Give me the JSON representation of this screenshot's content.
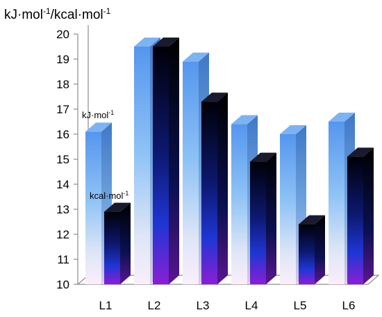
{
  "chart_data": {
    "type": "bar",
    "ylabel_parts": {
      "kj": "kJ·mol",
      "sup1": "-1",
      "sep": "/kcal·mol",
      "sup2": "-1"
    },
    "categories": [
      "L1",
      "L2",
      "L3",
      "L4",
      "L5",
      "L6"
    ],
    "ylim": [
      10,
      20
    ],
    "yticks": [
      10,
      11,
      12,
      13,
      14,
      15,
      16,
      17,
      18,
      19,
      20
    ],
    "grid": false,
    "series": [
      {
        "values": [
          16.1,
          19.5,
          18.9,
          16.4,
          16.0,
          16.5
        ]
      },
      {
        "values": [
          12.9,
          19.5,
          17.3,
          14.9,
          12.4,
          15.1
        ]
      }
    ],
    "annotations": [
      {
        "text": "kJ·mol",
        "sup": "-1"
      },
      {
        "text": "kcal·mol",
        "sup": "-1"
      }
    ],
    "colors": {
      "series1_top": "#5b9bef",
      "series1_mid": "#8ec2f5",
      "series1_bottom": "#f8e8f8",
      "series2_top": "#000010",
      "series2_mid": "#1c2fc0",
      "series2_bottom": "#7a1fd0"
    }
  }
}
